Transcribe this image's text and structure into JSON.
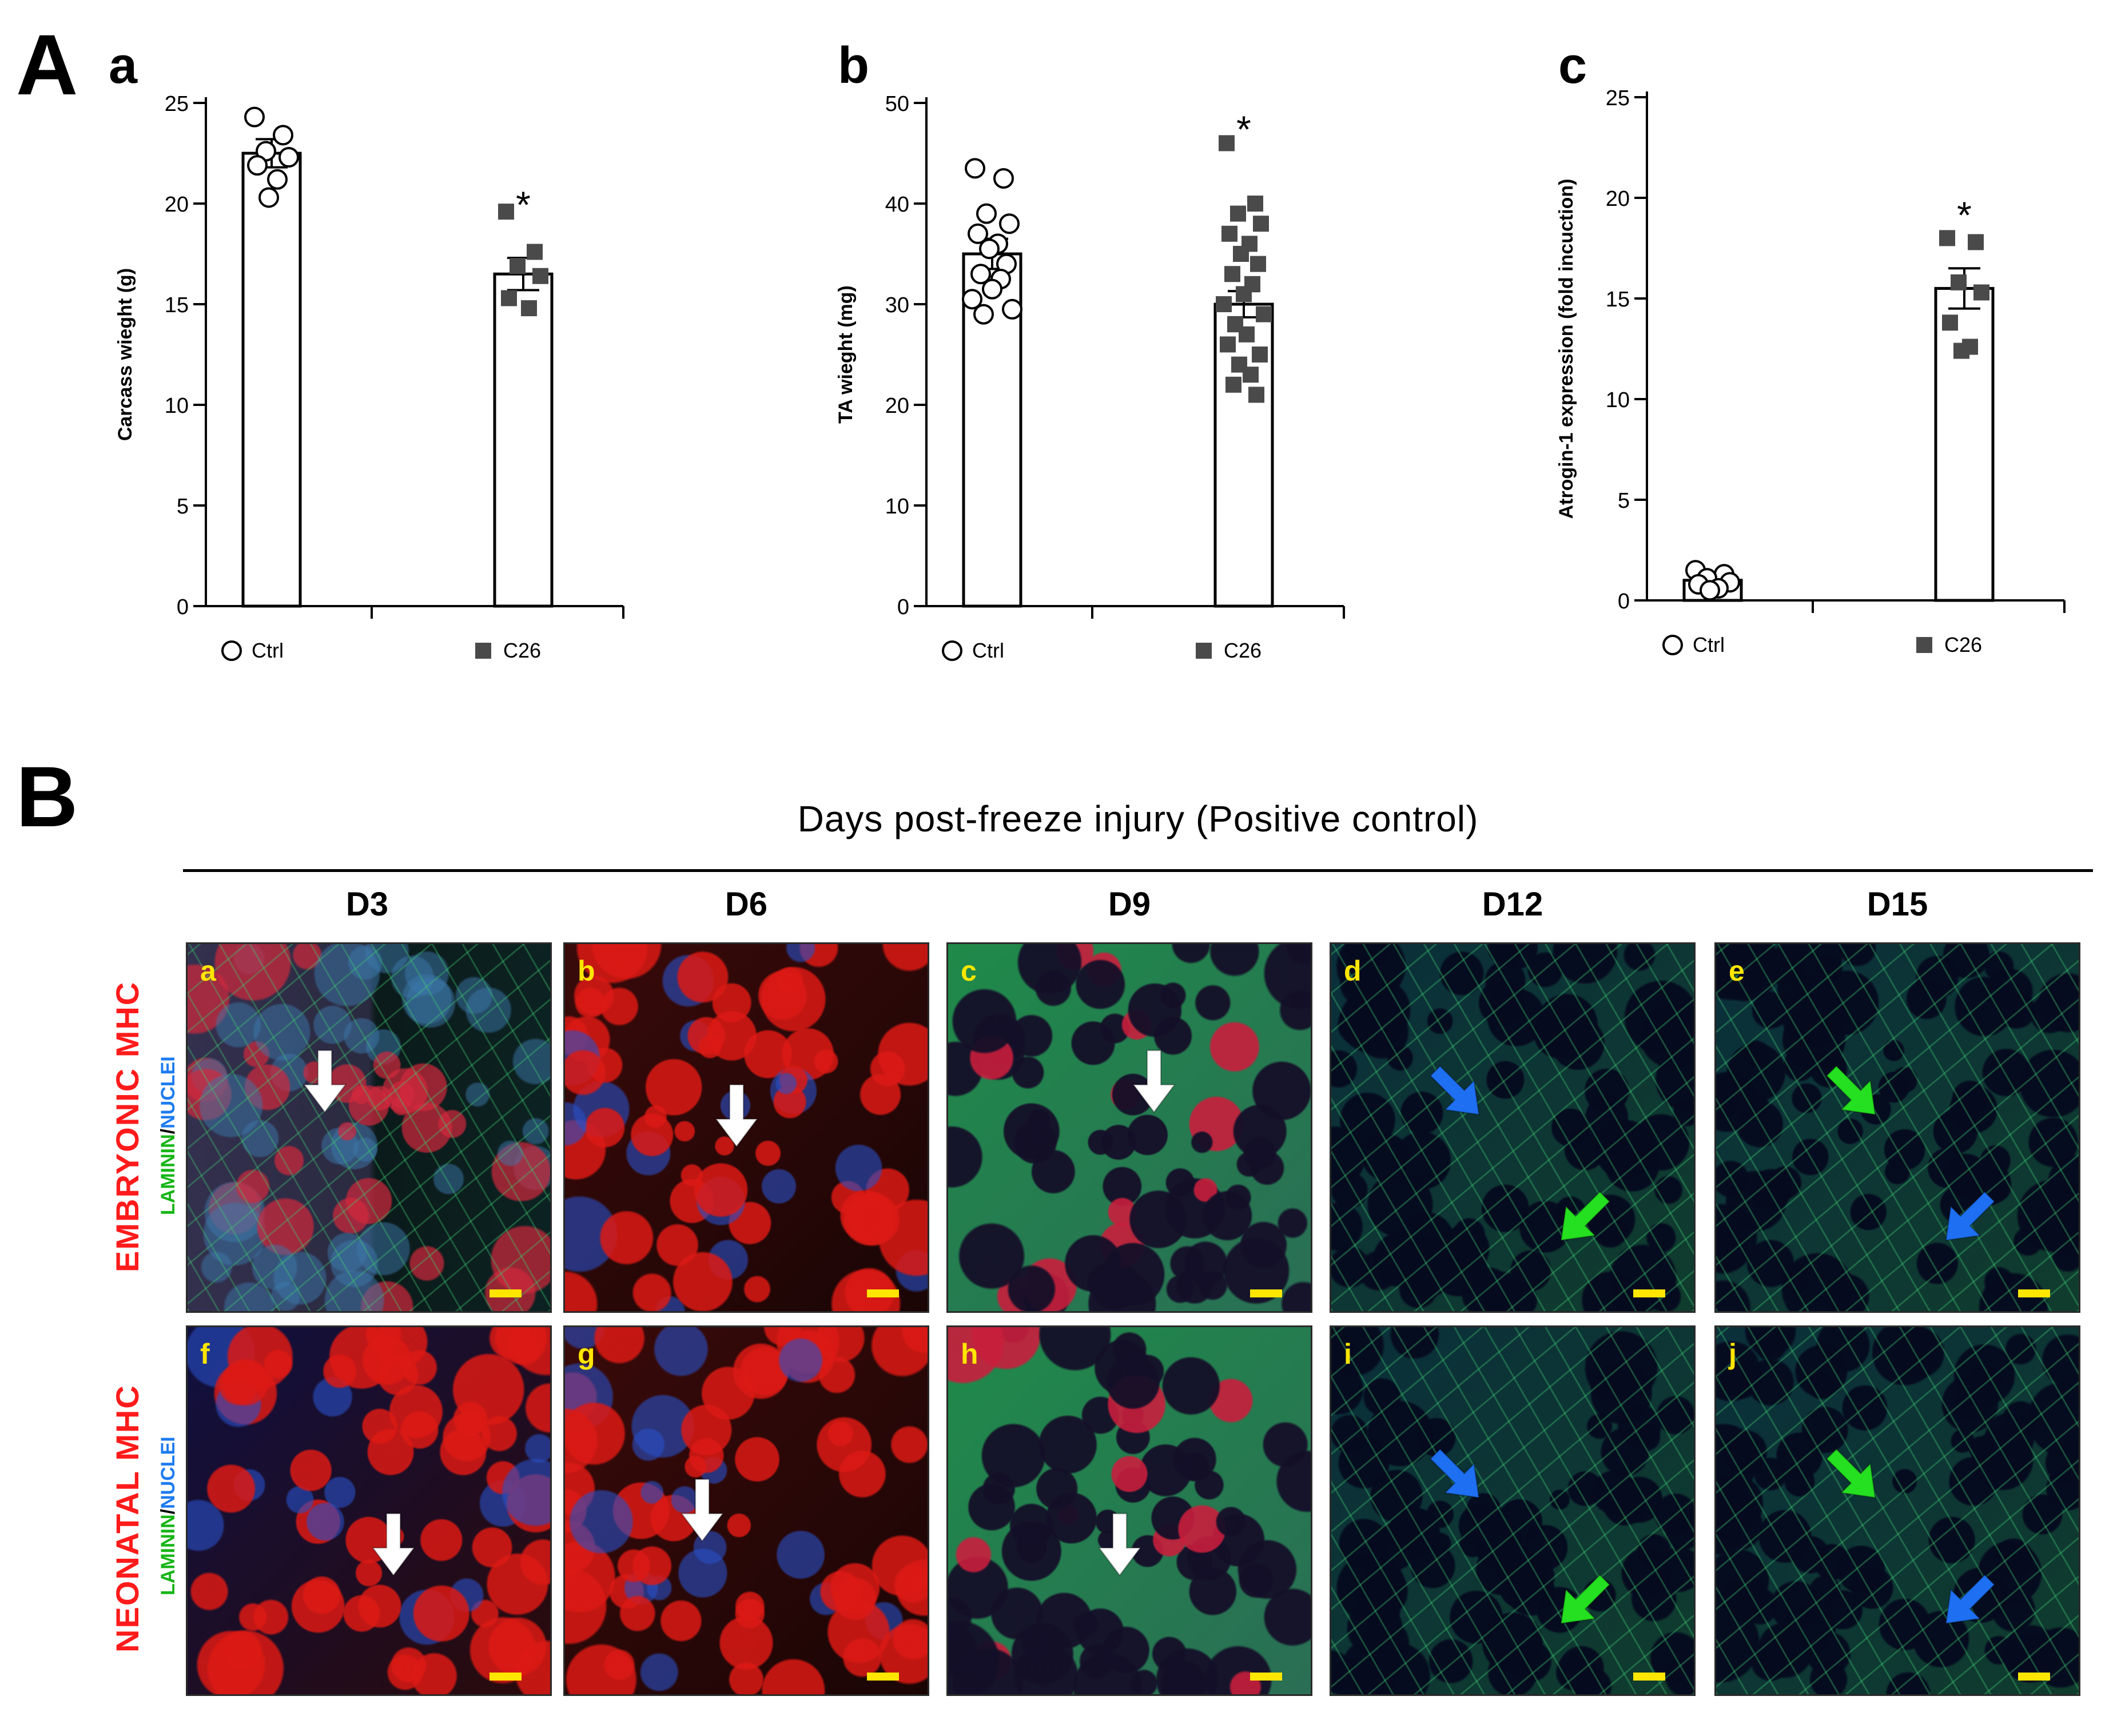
{
  "figure": {
    "panel_a_label": "A",
    "panel_b_label": "B"
  },
  "chart_data": [
    {
      "id": "a",
      "type": "bar",
      "panel": "a",
      "ylabel": "Carcass wieght (g)",
      "ylim": [
        0,
        25
      ],
      "yticks": [
        0,
        5,
        10,
        15,
        20,
        25
      ],
      "categories": [
        "Ctrl",
        "C26"
      ],
      "values": [
        22.5,
        16.5
      ],
      "errors": [
        0.7,
        0.8
      ],
      "significance": [
        "",
        "*"
      ],
      "points": [
        [
          24.3,
          23.4,
          22.6,
          22.3,
          21.9,
          21.2,
          20.3
        ],
        [
          19.6,
          17.6,
          16.9,
          16.4,
          15.3,
          14.8
        ]
      ],
      "markers": [
        "circle-open",
        "square-filled"
      ]
    },
    {
      "id": "b",
      "type": "bar",
      "panel": "b",
      "ylabel": "TA wieght (mg)",
      "ylim": [
        0,
        50
      ],
      "yticks": [
        0,
        10,
        20,
        30,
        40,
        50
      ],
      "categories": [
        "Ctrl",
        "C26"
      ],
      "values": [
        35,
        30
      ],
      "errors": [
        1.5,
        1.3
      ],
      "significance": [
        "",
        "*"
      ],
      "points": [
        [
          43.5,
          42.5,
          39.0,
          38.0,
          37.0,
          36.0,
          35.5,
          34.0,
          33.0,
          32.5,
          31.5,
          30.5,
          29.5,
          29.0
        ],
        [
          46.0,
          40.0,
          39.0,
          38.0,
          37.0,
          36.0,
          35.0,
          34.0,
          33.0,
          32.0,
          31.0,
          30.0,
          29.0,
          28.0,
          27.0,
          26.0,
          25.0,
          24.0,
          23.0,
          22.0,
          21.0
        ]
      ],
      "markers": [
        "circle-open",
        "square-filled"
      ]
    },
    {
      "id": "c",
      "type": "bar",
      "panel": "c",
      "ylabel": "Atrogin-1 expression (fold incuction)",
      "ylim": [
        0,
        25
      ],
      "yticks": [
        0,
        5,
        10,
        15,
        20,
        25
      ],
      "categories": [
        "Ctrl",
        "C26"
      ],
      "values": [
        1.0,
        15.5
      ],
      "errors": [
        0.2,
        1.0
      ],
      "significance": [
        "",
        "*"
      ],
      "points": [
        [
          1.5,
          1.3,
          1.1,
          0.9,
          0.8,
          0.6,
          0.5
        ],
        [
          18.0,
          17.8,
          15.8,
          15.3,
          13.8,
          12.6,
          12.4
        ]
      ],
      "markers": [
        "circle-open",
        "square-filled"
      ]
    }
  ],
  "microscopy": {
    "header": "Days post-freeze injury (Positive control)",
    "columns": [
      "D3",
      "D6",
      "D9",
      "D12",
      "D15"
    ],
    "rows": [
      {
        "label": "EMBRYONIC MHC",
        "stain_green": "LAMININ",
        "stain_sep": "/",
        "stain_blue": "NUCLEI"
      },
      {
        "label": "NEONATAL MHC",
        "stain_green": "LAMININ",
        "stain_sep": "/",
        "stain_blue": "NUCLEI"
      }
    ],
    "tiles": [
      {
        "tag": "a",
        "style": "mixed",
        "arrows": [
          "white"
        ]
      },
      {
        "tag": "b",
        "style": "red-dense",
        "arrows": [
          "white"
        ]
      },
      {
        "tag": "c",
        "style": "green-red",
        "arrows": [
          "white"
        ]
      },
      {
        "tag": "d",
        "style": "green",
        "arrows": [
          "blue",
          "green"
        ]
      },
      {
        "tag": "e",
        "style": "green",
        "arrows": [
          "green",
          "blue"
        ]
      },
      {
        "tag": "f",
        "style": "red-fibers",
        "arrows": [
          "white"
        ]
      },
      {
        "tag": "g",
        "style": "red-dense",
        "arrows": [
          "white"
        ]
      },
      {
        "tag": "h",
        "style": "green-red",
        "arrows": [
          "white"
        ]
      },
      {
        "tag": "i",
        "style": "green",
        "arrows": [
          "blue",
          "green"
        ]
      },
      {
        "tag": "j",
        "style": "green",
        "arrows": [
          "green",
          "blue"
        ]
      }
    ],
    "colors": {
      "white_arrow": "#ffffff",
      "blue_arrow": "#1e6ff2",
      "green_arrow": "#25e021",
      "scalebar": "#ffe600",
      "tag": "#ffe600"
    }
  }
}
